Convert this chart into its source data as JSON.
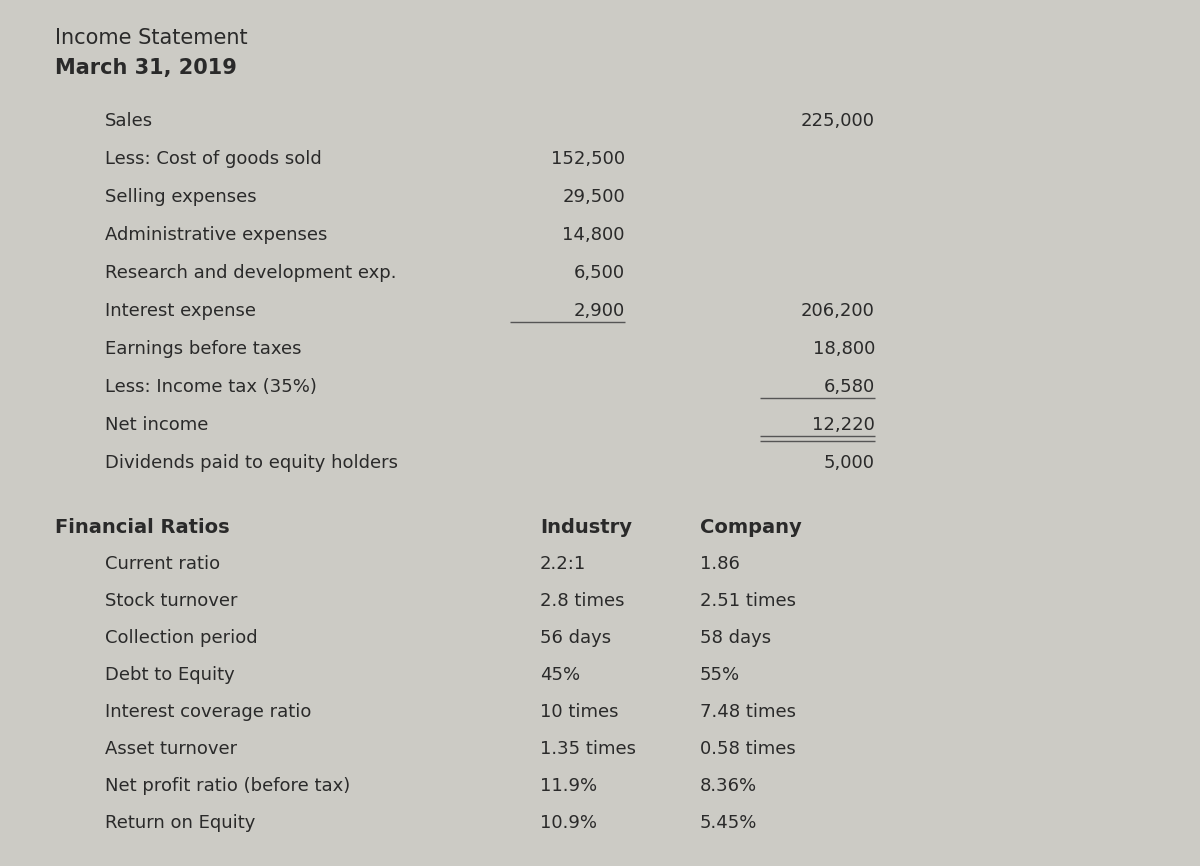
{
  "background_color": "#cccbc5",
  "title_line1": "Income Statement",
  "title_line2": "March 31, 2019",
  "income_statement": {
    "items": [
      {
        "label": "Sales",
        "col1": "",
        "col2": "225,000",
        "ul1": false,
        "ul2": false,
        "double_ul2": false
      },
      {
        "label": "Less: Cost of goods sold",
        "col1": "152,500",
        "col2": "",
        "ul1": false,
        "ul2": false,
        "double_ul2": false
      },
      {
        "label": "Selling expenses",
        "col1": "29,500",
        "col2": "",
        "ul1": false,
        "ul2": false,
        "double_ul2": false
      },
      {
        "label": "Administrative expenses",
        "col1": "14,800",
        "col2": "",
        "ul1": false,
        "ul2": false,
        "double_ul2": false
      },
      {
        "label": "Research and development exp.",
        "col1": "6,500",
        "col2": "",
        "ul1": false,
        "ul2": false,
        "double_ul2": false
      },
      {
        "label": "Interest expense",
        "col1": "2,900",
        "col2": "206,200",
        "ul1": true,
        "ul2": false,
        "double_ul2": false
      },
      {
        "label": "Earnings before taxes",
        "col1": "",
        "col2": "18,800",
        "ul1": false,
        "ul2": false,
        "double_ul2": false
      },
      {
        "label": "Less: Income tax (35%)",
        "col1": "",
        "col2": "6,580",
        "ul1": false,
        "ul2": true,
        "double_ul2": false
      },
      {
        "label": "Net income",
        "col1": "",
        "col2": "12,220",
        "ul1": false,
        "ul2": true,
        "double_ul2": true
      },
      {
        "label": "Dividends paid to equity holders",
        "col1": "",
        "col2": "5,000",
        "ul1": false,
        "ul2": false,
        "double_ul2": false
      }
    ]
  },
  "financial_ratios": {
    "header_label": "Financial Ratios",
    "header_industry": "Industry",
    "header_company": "Company",
    "items": [
      {
        "label": "Current ratio",
        "industry": "2.2:1",
        "company": "1.86"
      },
      {
        "label": "Stock turnover",
        "industry": "2.8 times",
        "company": "2.51 times"
      },
      {
        "label": "Collection period",
        "industry": "56 days",
        "company": "58 days"
      },
      {
        "label": "Debt to Equity",
        "industry": "45%",
        "company": "55%"
      },
      {
        "label": "Interest coverage ratio",
        "industry": "10 times",
        "company": "7.48 times"
      },
      {
        "label": "Asset turnover",
        "industry": "1.35 times",
        "company": "0.58 times"
      },
      {
        "label": "Net profit ratio (before tax)",
        "industry": "11.9%",
        "company": "8.36%"
      },
      {
        "label": "Return on Equity",
        "industry": "10.9%",
        "company": "5.45%"
      }
    ]
  }
}
